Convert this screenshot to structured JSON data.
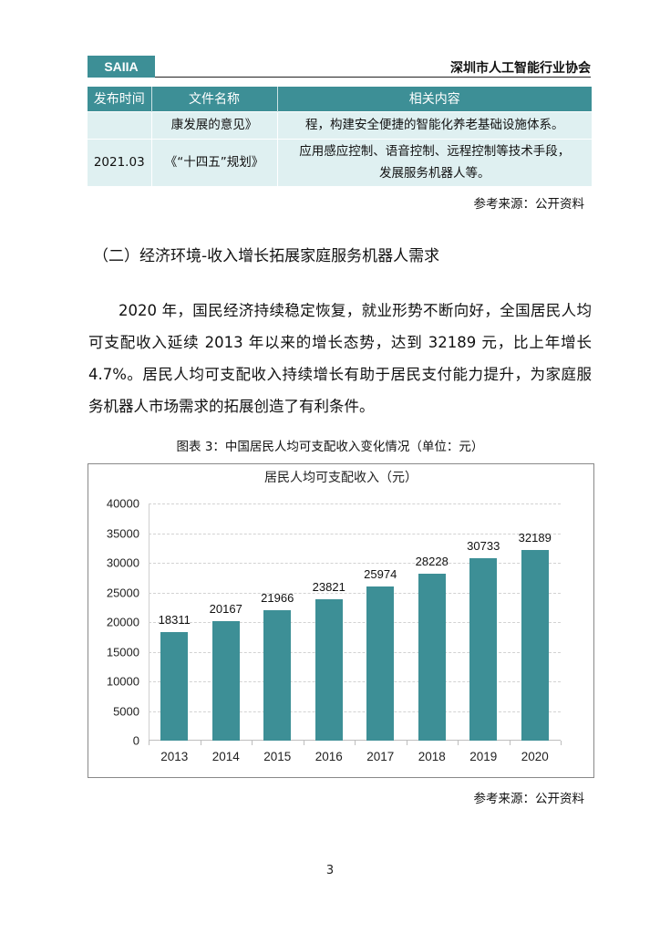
{
  "header": {
    "logo_text": "SAIIA",
    "organization": "深圳市人工智能行业协会"
  },
  "policy_table": {
    "columns": [
      "发布时间",
      "文件名称",
      "相关内容"
    ],
    "rows": [
      {
        "date": "",
        "name": "康发展的意见》",
        "content_lines": [
          "程，构建安全便捷的智能化养老基础设施体系。"
        ]
      },
      {
        "date": "2021.03",
        "name": "《“十四五”规划》",
        "content_lines": [
          "应用感应控制、语音控制、远程控制等技术手段，",
          "发展服务机器人等。"
        ]
      }
    ],
    "source": "参考来源：公开资料"
  },
  "section": {
    "title": "（二）经济环境-收入增长拓展家庭服务机器人需求",
    "paragraph": "2020 年，国民经济持续稳定恢复，就业形势不断向好，全国居民人均可支配收入延续 2013 年以来的增长态势，达到 32189 元，比上年增长 4.7%。居民人均可支配收入持续增长有助于居民支付能力提升，为家庭服务机器人市场需求的拓展创造了有利条件。"
  },
  "figure": {
    "caption": "图表 3：中国居民人均可支配收入变化情况（单位：元）",
    "source": "参考来源：公开资料"
  },
  "chart_data": {
    "type": "bar",
    "title": "居民人均可支配收入（元）",
    "categories": [
      "2013",
      "2014",
      "2015",
      "2016",
      "2017",
      "2018",
      "2019",
      "2020"
    ],
    "values": [
      18311,
      20167,
      21966,
      23821,
      25974,
      28228,
      30733,
      32189
    ],
    "xlabel": "",
    "ylabel": "",
    "ylim": [
      0,
      40000
    ],
    "yticks": [
      "0",
      "5000",
      "10000",
      "15000",
      "20000",
      "25000",
      "30000",
      "35000",
      "40000"
    ],
    "grid": true,
    "legend": "none",
    "bar_color": "#3d8f96",
    "data_labels": true
  },
  "footer": {
    "page_number": "3"
  }
}
